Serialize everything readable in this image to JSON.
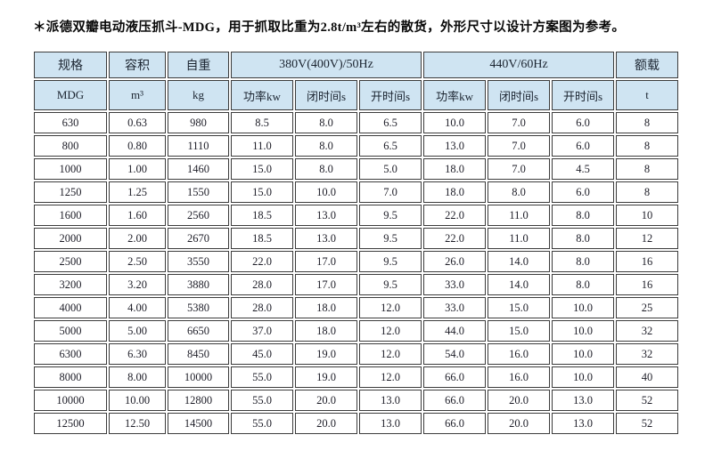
{
  "title": "＊派德双瓣电动液压抓斗-MDG，用于抓取比重为2.8t/m³左右的散货，外形尺寸以设计方案图为参考。",
  "colors": {
    "header_bg": "#cfe4f2",
    "border": "#3c3c3c",
    "text": "#1e1e28",
    "page_bg": "#ffffff"
  },
  "table": {
    "header": {
      "spec": "规格",
      "capacity": "容积",
      "weight": "自重",
      "hz50": "380V(400V)/50Hz",
      "hz60": "440V/60Hz",
      "load": "额载",
      "spec_unit": "MDG",
      "capacity_unit": "m³",
      "weight_unit": "kg",
      "power": "功率kw",
      "close_time": "闭时间s",
      "open_time": "开时间s",
      "load_unit": "t"
    },
    "rows": [
      [
        "630",
        "0.63",
        "980",
        "8.5",
        "8.0",
        "6.5",
        "10.0",
        "7.0",
        "6.0",
        "8"
      ],
      [
        "800",
        "0.80",
        "1110",
        "11.0",
        "8.0",
        "6.5",
        "13.0",
        "7.0",
        "6.0",
        "8"
      ],
      [
        "1000",
        "1.00",
        "1460",
        "15.0",
        "8.0",
        "5.0",
        "18.0",
        "7.0",
        "4.5",
        "8"
      ],
      [
        "1250",
        "1.25",
        "1550",
        "15.0",
        "10.0",
        "7.0",
        "18.0",
        "8.0",
        "6.0",
        "8"
      ],
      [
        "1600",
        "1.60",
        "2560",
        "18.5",
        "13.0",
        "9.5",
        "22.0",
        "11.0",
        "8.0",
        "10"
      ],
      [
        "2000",
        "2.00",
        "2670",
        "18.5",
        "13.0",
        "9.5",
        "22.0",
        "11.0",
        "8.0",
        "12"
      ],
      [
        "2500",
        "2.50",
        "3550",
        "22.0",
        "17.0",
        "9.5",
        "26.0",
        "14.0",
        "8.0",
        "16"
      ],
      [
        "3200",
        "3.20",
        "3880",
        "28.0",
        "17.0",
        "9.5",
        "33.0",
        "14.0",
        "8.0",
        "16"
      ],
      [
        "4000",
        "4.00",
        "5380",
        "28.0",
        "18.0",
        "12.0",
        "33.0",
        "15.0",
        "10.0",
        "25"
      ],
      [
        "5000",
        "5.00",
        "6650",
        "37.0",
        "18.0",
        "12.0",
        "44.0",
        "15.0",
        "10.0",
        "32"
      ],
      [
        "6300",
        "6.30",
        "8450",
        "45.0",
        "19.0",
        "12.0",
        "54.0",
        "16.0",
        "10.0",
        "32"
      ],
      [
        "8000",
        "8.00",
        "10000",
        "55.0",
        "19.0",
        "12.0",
        "66.0",
        "16.0",
        "10.0",
        "40"
      ],
      [
        "10000",
        "10.00",
        "12800",
        "55.0",
        "20.0",
        "13.0",
        "66.0",
        "20.0",
        "13.0",
        "52"
      ],
      [
        "12500",
        "12.50",
        "14500",
        "55.0",
        "20.0",
        "13.0",
        "66.0",
        "20.0",
        "13.0",
        "52"
      ]
    ]
  }
}
